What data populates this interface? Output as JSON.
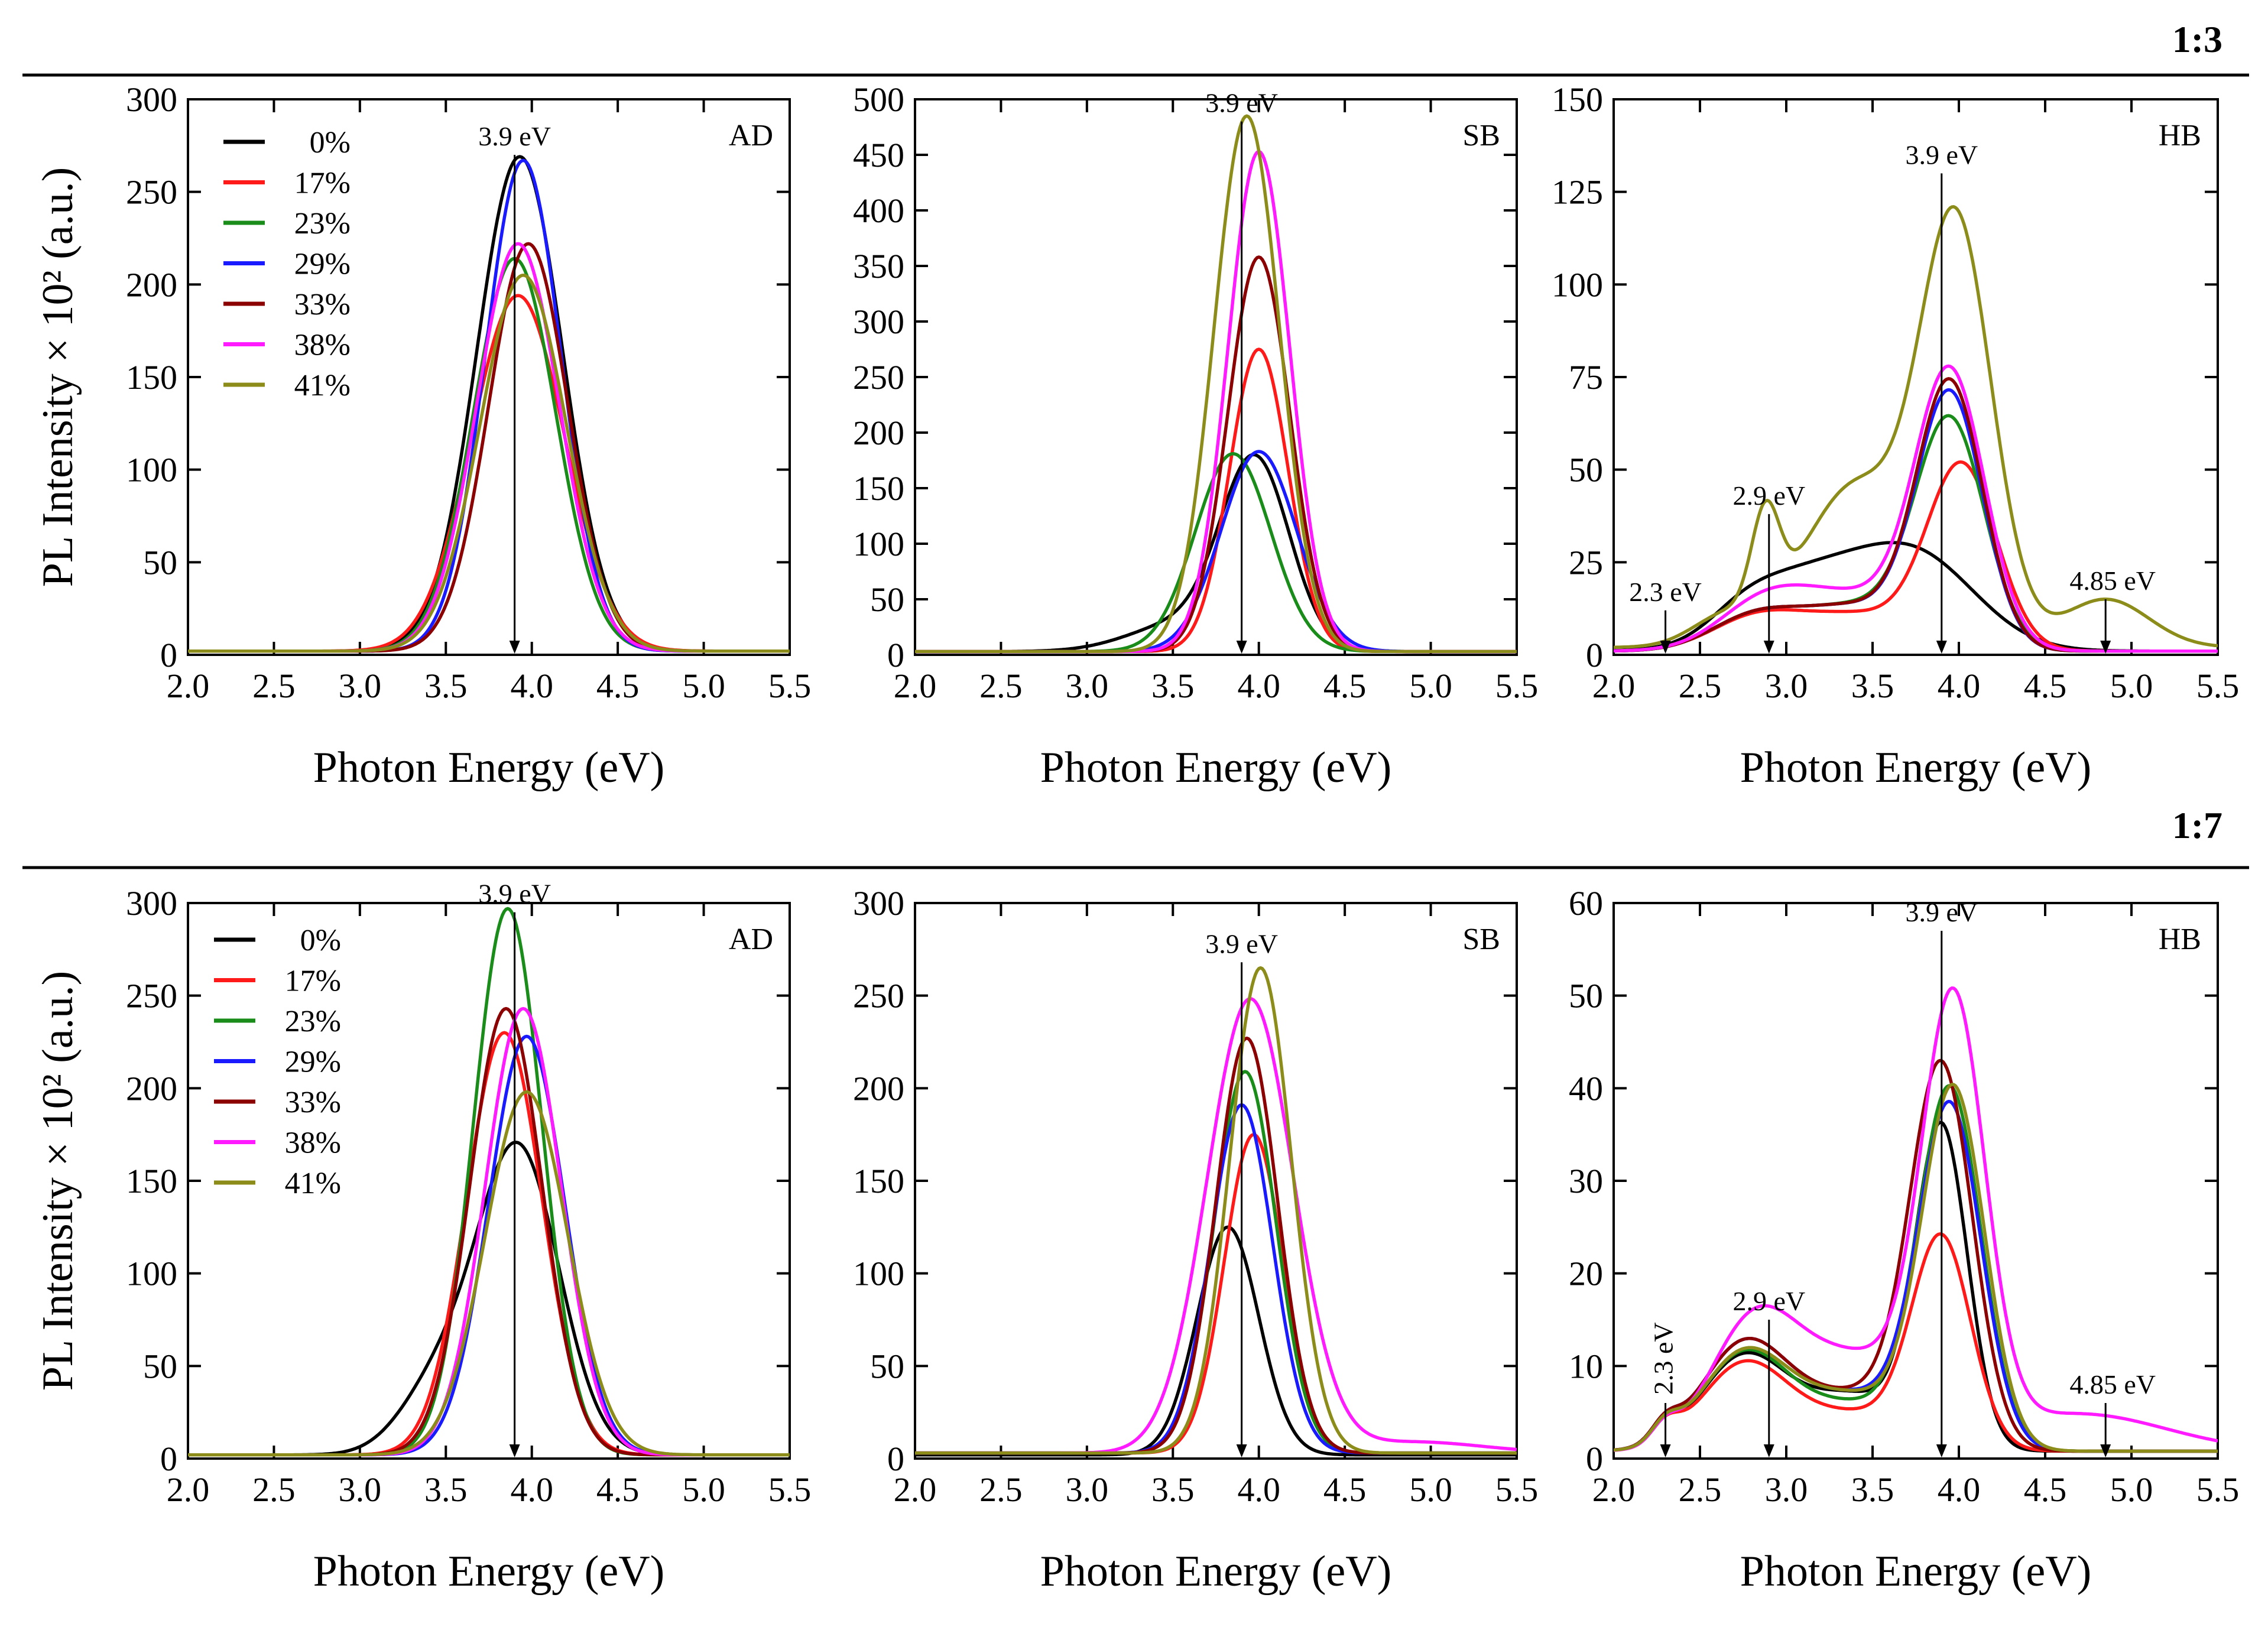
{
  "figure": {
    "sections": [
      {
        "label": "1:3"
      },
      {
        "label": "1:7"
      }
    ],
    "legend": {
      "entries": [
        {
          "label": "0%",
          "color": "#000000"
        },
        {
          "label": "17%",
          "color": "#ff1a1a"
        },
        {
          "label": "23%",
          "color": "#1a8c1a"
        },
        {
          "label": "29%",
          "color": "#1a1aff"
        },
        {
          "label": "33%",
          "color": "#8b0000"
        },
        {
          "label": "38%",
          "color": "#ff1aff"
        },
        {
          "label": "41%",
          "color": "#8c8c1a"
        }
      ]
    }
  },
  "chart_data": [
    {
      "panel": "AD",
      "section": "1:3",
      "type": "line",
      "xlabel": "Photon Energy (eV)",
      "ylabel": "PL Intensity × 10² (a.u.)",
      "xlim": [
        2.0,
        5.5
      ],
      "ylim": [
        0,
        300
      ],
      "xticks": [
        "2.0",
        "2.5",
        "3.0",
        "3.5",
        "4.0",
        "4.5",
        "5.0",
        "5.5"
      ],
      "yticks": [
        "0",
        "50",
        "100",
        "150",
        "200",
        "250",
        "300"
      ],
      "annotations": [
        {
          "text": "3.9 eV",
          "x": 3.9,
          "arrow_from": 270,
          "arrow_to": 0
        }
      ],
      "series": [
        {
          "name": "0%",
          "peaks": [
            [
              3.93,
              267,
              0.25
            ]
          ],
          "baseline": 2
        },
        {
          "name": "17%",
          "peaks": [
            [
              3.92,
              192,
              0.27
            ]
          ],
          "baseline": 2
        },
        {
          "name": "23%",
          "peaks": [
            [
              3.9,
              212,
              0.24
            ]
          ],
          "baseline": 2
        },
        {
          "name": "29%",
          "peaks": [
            [
              3.95,
              265,
              0.22
            ]
          ],
          "baseline": 2
        },
        {
          "name": "33%",
          "peaks": [
            [
              3.98,
              220,
              0.23
            ]
          ],
          "baseline": 2
        },
        {
          "name": "38%",
          "peaks": [
            [
              3.92,
              220,
              0.24
            ]
          ],
          "baseline": 2
        },
        {
          "name": "41%",
          "peaks": [
            [
              3.95,
              203,
              0.25
            ]
          ],
          "baseline": 2
        }
      ]
    },
    {
      "panel": "SB",
      "section": "1:3",
      "type": "line",
      "xlabel": "Photon Energy (eV)",
      "ylabel": "",
      "xlim": [
        2.0,
        5.5
      ],
      "ylim": [
        0,
        500
      ],
      "xticks": [
        "2.0",
        "2.5",
        "3.0",
        "3.5",
        "4.0",
        "4.5",
        "5.0",
        "5.5"
      ],
      "yticks": [
        "0",
        "50",
        "100",
        "150",
        "200",
        "250",
        "300",
        "350",
        "400",
        "450",
        "500"
      ],
      "annotations": [
        {
          "text": "3.9 eV",
          "x": 3.9,
          "arrow_from": 480,
          "arrow_to": 0
        }
      ],
      "series": [
        {
          "name": "0%",
          "peaks": [
            [
              3.98,
              168,
              0.2
            ],
            [
              3.55,
              25,
              0.3
            ]
          ],
          "baseline": 3
        },
        {
          "name": "17%",
          "peaks": [
            [
              4.0,
              272,
              0.17
            ]
          ],
          "baseline": 3
        },
        {
          "name": "23%",
          "peaks": [
            [
              3.85,
              178,
              0.22
            ]
          ],
          "baseline": 3
        },
        {
          "name": "29%",
          "peaks": [
            [
              4.0,
              180,
              0.22
            ]
          ],
          "baseline": 3
        },
        {
          "name": "33%",
          "peaks": [
            [
              4.0,
              355,
              0.18
            ]
          ],
          "baseline": 3
        },
        {
          "name": "38%",
          "peaks": [
            [
              4.0,
              450,
              0.18
            ]
          ],
          "baseline": 3
        },
        {
          "name": "41%",
          "peaks": [
            [
              3.93,
              482,
              0.19
            ]
          ],
          "baseline": 3
        }
      ]
    },
    {
      "panel": "HB",
      "section": "1:3",
      "type": "line",
      "xlabel": "Photon Energy (eV)",
      "ylabel": "",
      "xlim": [
        2.0,
        5.5
      ],
      "ylim": [
        0,
        150
      ],
      "xticks": [
        "2.0",
        "2.5",
        "3.0",
        "3.5",
        "4.0",
        "4.5",
        "5.0",
        "5.5"
      ],
      "yticks": [
        "0",
        "25",
        "50",
        "75",
        "100",
        "125",
        "150"
      ],
      "annotations": [
        {
          "text": "2.3 eV",
          "x": 2.3,
          "arrow_from": 12,
          "arrow_to": 0
        },
        {
          "text": "2.9 eV",
          "x": 2.9,
          "arrow_from": 38,
          "arrow_to": 0
        },
        {
          "text": "3.9 eV",
          "x": 3.9,
          "arrow_from": 130,
          "arrow_to": 0
        },
        {
          "text": "4.85 eV",
          "x": 4.85,
          "arrow_from": 15,
          "arrow_to": 0
        }
      ],
      "series": [
        {
          "name": "0%",
          "peaks": [
            [
              3.75,
              25,
              0.35
            ],
            [
              3.1,
              18,
              0.35
            ],
            [
              2.75,
              5,
              0.2
            ]
          ],
          "baseline": 1
        },
        {
          "name": "17%",
          "peaks": [
            [
              4.02,
              48,
              0.2
            ],
            [
              3.4,
              10,
              0.4
            ],
            [
              2.8,
              7,
              0.25
            ]
          ],
          "baseline": 1
        },
        {
          "name": "23%",
          "peaks": [
            [
              3.95,
              60,
              0.2
            ],
            [
              3.4,
              12,
              0.35
            ],
            [
              2.8,
              8,
              0.25
            ]
          ],
          "baseline": 1
        },
        {
          "name": "29%",
          "peaks": [
            [
              3.95,
              67,
              0.19
            ],
            [
              3.4,
              12,
              0.35
            ],
            [
              2.8,
              8,
              0.25
            ]
          ],
          "baseline": 1
        },
        {
          "name": "33%",
          "peaks": [
            [
              3.95,
              70,
              0.19
            ],
            [
              3.4,
              12,
              0.35
            ],
            [
              2.8,
              8,
              0.25
            ]
          ],
          "baseline": 1
        },
        {
          "name": "38%",
          "peaks": [
            [
              3.95,
              72,
              0.2
            ],
            [
              3.35,
              15,
              0.4
            ],
            [
              2.85,
              9,
              0.25
            ]
          ],
          "baseline": 1
        },
        {
          "name": "41%",
          "peaks": [
            [
              3.98,
              115,
              0.21
            ],
            [
              3.45,
              35,
              0.25
            ],
            [
              2.88,
              25,
              0.08
            ],
            [
              4.85,
              13,
              0.25
            ],
            [
              2.65,
              8,
              0.2
            ],
            [
              3.15,
              14,
              0.25
            ]
          ],
          "baseline": 2
        }
      ]
    },
    {
      "panel": "AD",
      "section": "1:7",
      "type": "line",
      "xlabel": "Photon Energy (eV)",
      "ylabel": "PL Intensity × 10² (a.u.)",
      "xlim": [
        2.0,
        5.5
      ],
      "ylim": [
        0,
        300
      ],
      "xticks": [
        "2.0",
        "2.5",
        "3.0",
        "3.5",
        "4.0",
        "4.5",
        "5.0",
        "5.5"
      ],
      "yticks": [
        "0",
        "50",
        "100",
        "150",
        "200",
        "250",
        "300"
      ],
      "annotations": [
        {
          "text": "3.9 eV",
          "x": 3.9,
          "arrow_from": 295,
          "arrow_to": 0
        }
      ],
      "series": [
        {
          "name": "0%",
          "peaks": [
            [
              3.92,
              165,
              0.24
            ],
            [
              3.45,
              35,
              0.22
            ]
          ],
          "baseline": 2
        },
        {
          "name": "17%",
          "peaks": [
            [
              3.84,
              228,
              0.22
            ]
          ],
          "baseline": 2
        },
        {
          "name": "23%",
          "peaks": [
            [
              3.86,
              295,
              0.2
            ]
          ],
          "baseline": 2
        },
        {
          "name": "29%",
          "peaks": [
            [
              3.97,
              226,
              0.22
            ]
          ],
          "baseline": 2
        },
        {
          "name": "33%",
          "peaks": [
            [
              3.85,
              241,
              0.21
            ]
          ],
          "baseline": 2
        },
        {
          "name": "38%",
          "peaks": [
            [
              3.95,
              241,
              0.22
            ]
          ],
          "baseline": 2
        },
        {
          "name": "41%",
          "peaks": [
            [
              3.97,
              196,
              0.24
            ]
          ],
          "baseline": 2
        }
      ]
    },
    {
      "panel": "SB",
      "section": "1:7",
      "type": "line",
      "xlabel": "Photon Energy (eV)",
      "ylabel": "",
      "xlim": [
        2.0,
        5.5
      ],
      "ylim": [
        0,
        300
      ],
      "xticks": [
        "2.0",
        "2.5",
        "3.0",
        "3.5",
        "4.0",
        "4.5",
        "5.0",
        "5.5"
      ],
      "yticks": [
        "0",
        "50",
        "100",
        "150",
        "200",
        "250",
        "300"
      ],
      "annotations": [
        {
          "text": "3.9 eV",
          "x": 3.9,
          "arrow_from": 268,
          "arrow_to": 0
        }
      ],
      "series": [
        {
          "name": "0%",
          "peaks": [
            [
              3.82,
              123,
              0.18
            ]
          ],
          "baseline": 2
        },
        {
          "name": "17%",
          "peaks": [
            [
              3.97,
              172,
              0.17
            ]
          ],
          "baseline": 3
        },
        {
          "name": "23%",
          "peaks": [
            [
              3.92,
              206,
              0.18
            ]
          ],
          "baseline": 3
        },
        {
          "name": "29%",
          "peaks": [
            [
              3.9,
              188,
              0.18
            ]
          ],
          "baseline": 3
        },
        {
          "name": "33%",
          "peaks": [
            [
              3.93,
              224,
              0.18
            ]
          ],
          "baseline": 3
        },
        {
          "name": "38%",
          "peaks": [
            [
              3.95,
              245,
              0.25
            ],
            [
              4.9,
              6,
              0.4
            ]
          ],
          "baseline": 3
        },
        {
          "name": "41%",
          "peaks": [
            [
              4.01,
              262,
              0.18
            ]
          ],
          "baseline": 3
        }
      ]
    },
    {
      "panel": "HB",
      "section": "1:7",
      "type": "line",
      "xlabel": "Photon Energy (eV)",
      "ylabel": "",
      "xlim": [
        2.0,
        5.5
      ],
      "ylim": [
        0,
        60
      ],
      "xticks": [
        "2.0",
        "2.5",
        "3.0",
        "3.5",
        "4.0",
        "4.5",
        "5.0",
        "5.5"
      ],
      "yticks": [
        "0",
        "10",
        "20",
        "30",
        "40",
        "50",
        "60"
      ],
      "annotations": [
        {
          "text": "2.3 eV",
          "x": 2.3,
          "arrow_from": 6,
          "arrow_to": 0,
          "rotated": true
        },
        {
          "text": "2.9 eV",
          "x": 2.9,
          "arrow_from": 15,
          "arrow_to": 0
        },
        {
          "text": "3.9 eV",
          "x": 3.9,
          "arrow_from": 57,
          "arrow_to": 0
        },
        {
          "text": "4.85 eV",
          "x": 4.85,
          "arrow_from": 6,
          "arrow_to": 0
        }
      ],
      "series": [
        {
          "name": "0%",
          "peaks": [
            [
              3.9,
              34,
              0.15
            ],
            [
              3.4,
              6,
              0.3
            ],
            [
              2.75,
              10,
              0.25
            ],
            [
              2.3,
              2,
              0.08
            ]
          ],
          "baseline": 0.8
        },
        {
          "name": "17%",
          "peaks": [
            [
              3.9,
              22,
              0.17
            ],
            [
              3.4,
              4,
              0.35
            ],
            [
              2.75,
              9,
              0.25
            ],
            [
              2.3,
              2,
              0.08
            ]
          ],
          "baseline": 0.8
        },
        {
          "name": "23%",
          "peaks": [
            [
              3.95,
              38,
              0.18
            ],
            [
              3.4,
              5,
              0.35
            ],
            [
              2.75,
              10,
              0.25
            ],
            [
              2.3,
              2,
              0.08
            ]
          ],
          "baseline": 0.8
        },
        {
          "name": "29%",
          "peaks": [
            [
              3.95,
              36,
              0.18
            ],
            [
              3.4,
              6,
              0.35
            ],
            [
              2.75,
              11,
              0.25
            ],
            [
              2.3,
              2,
              0.08
            ]
          ],
          "baseline": 0.8
        },
        {
          "name": "33%",
          "peaks": [
            [
              3.9,
              40,
              0.18
            ],
            [
              3.4,
              6,
              0.35
            ],
            [
              2.75,
              11,
              0.25
            ],
            [
              2.3,
              2,
              0.08
            ]
          ],
          "baseline": 0.8
        },
        {
          "name": "38%",
          "peaks": [
            [
              3.97,
              45,
              0.18
            ],
            [
              3.4,
              10,
              0.4
            ],
            [
              2.8,
              12,
              0.25
            ],
            [
              4.7,
              4,
              0.5
            ],
            [
              2.3,
              2,
              0.08
            ]
          ],
          "baseline": 0.8
        },
        {
          "name": "41%",
          "peaks": [
            [
              3.97,
              38,
              0.18
            ],
            [
              3.4,
              6,
              0.35
            ],
            [
              2.75,
              10,
              0.25
            ],
            [
              2.3,
              2,
              0.08
            ]
          ],
          "baseline": 0.8
        }
      ]
    }
  ]
}
